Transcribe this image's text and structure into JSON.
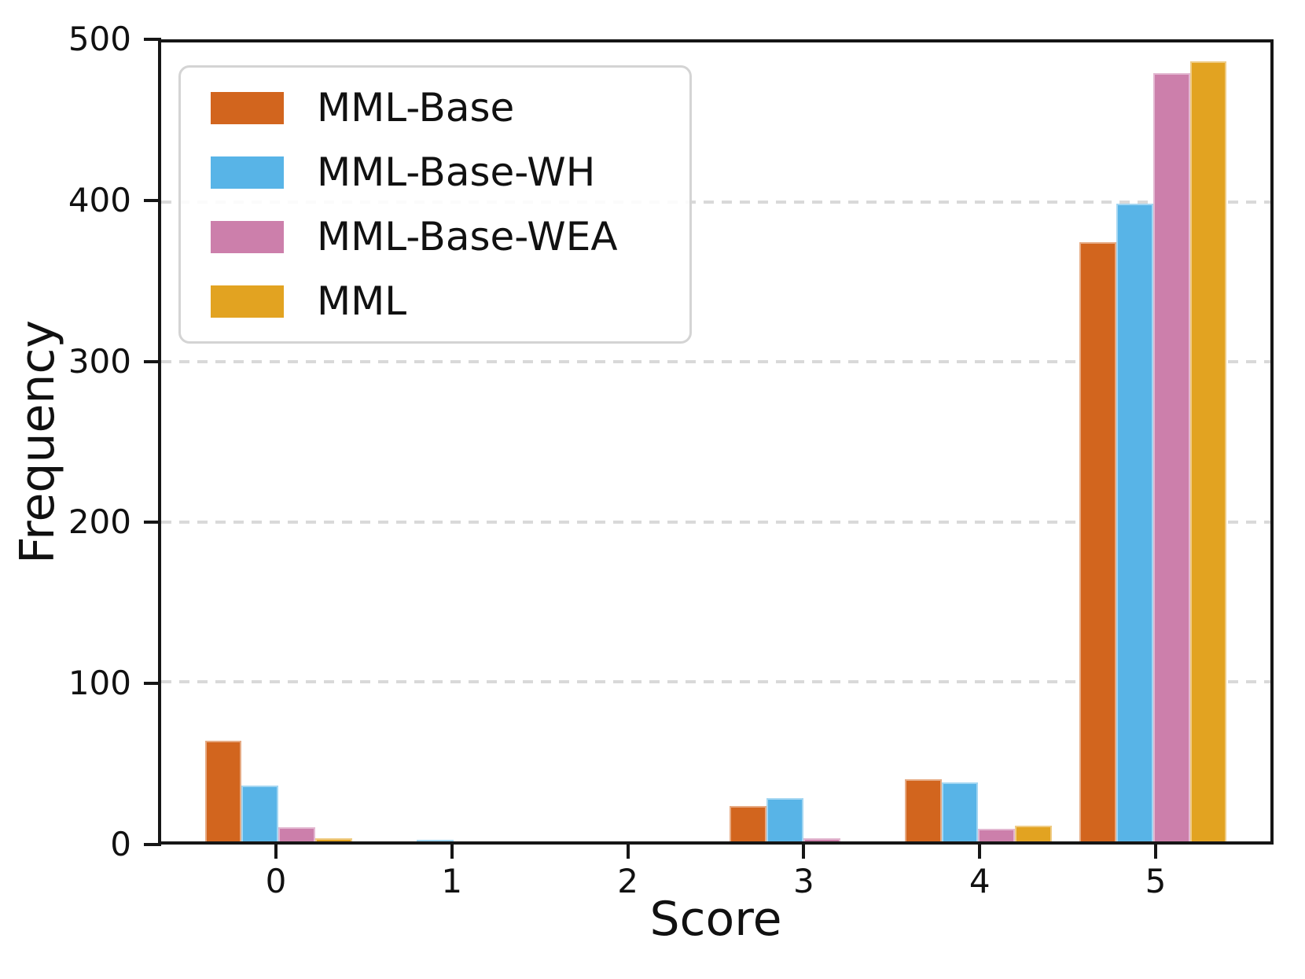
{
  "chart_data": {
    "type": "bar",
    "title": "",
    "xlabel": "Score",
    "ylabel": "Frequency",
    "categories": [
      "0",
      "1",
      "2",
      "3",
      "4",
      "5"
    ],
    "series": [
      {
        "name": "MML-Base",
        "color": "#D2651E",
        "values": [
          63,
          0,
          0,
          22,
          39,
          375
        ]
      },
      {
        "name": "MML-Base-WH",
        "color": "#58B4E7",
        "values": [
          35,
          1,
          0,
          27,
          37,
          399
        ]
      },
      {
        "name": "MML-Base-WEA",
        "color": "#CC7FAB",
        "values": [
          9,
          0,
          0,
          2,
          8,
          481
        ]
      },
      {
        "name": "MML",
        "color": "#E2A321",
        "values": [
          2,
          0,
          0,
          0,
          10,
          488
        ]
      }
    ],
    "ylim": [
      0,
      500
    ],
    "yticks": [
      0,
      100,
      200,
      300,
      400,
      500
    ],
    "grid": "dashed horizontal gridlines",
    "gridline_color": "#d9d9d9",
    "spine_color": "#161616",
    "legend_position": "upper left"
  }
}
